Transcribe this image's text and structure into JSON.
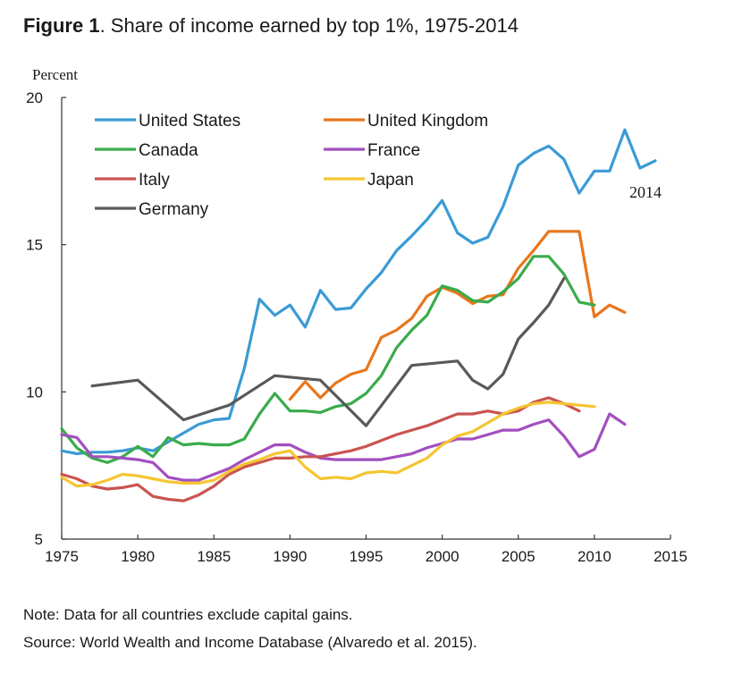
{
  "figure": {
    "label": "Figure 1",
    "title": ". Share of income earned by top 1%, 1975-2014",
    "note": "Note: Data for all countries exclude capital gains.",
    "source": "Source: World Wealth and Income Database (Alvaredo et al. 2015)."
  },
  "chart_data": {
    "type": "line",
    "title": "Share of income earned by top 1%, 1975-2014",
    "xlabel": "",
    "ylabel": "Percent",
    "xlim": [
      1975,
      2015
    ],
    "ylim": [
      5,
      20
    ],
    "xticks": [
      1975,
      1980,
      1985,
      1990,
      1995,
      2000,
      2005,
      2010,
      2015
    ],
    "yticks": [
      5,
      10,
      15,
      20
    ],
    "grid": false,
    "legend_position": "top-left",
    "annotations": [
      {
        "text": "2014",
        "x": 2014,
        "y": 17.3
      }
    ],
    "series": [
      {
        "name": "United States",
        "color": "#3a9bd5",
        "x": [
          1975,
          1976,
          1977,
          1978,
          1979,
          1980,
          1981,
          1982,
          1983,
          1984,
          1985,
          1986,
          1987,
          1988,
          1989,
          1990,
          1991,
          1992,
          1993,
          1994,
          1995,
          1996,
          1997,
          1998,
          1999,
          2000,
          2001,
          2002,
          2003,
          2004,
          2005,
          2006,
          2007,
          2008,
          2009,
          2010,
          2011,
          2012,
          2013,
          2014
        ],
        "y": [
          8.0,
          7.9,
          7.95,
          7.95,
          8.0,
          8.1,
          8.0,
          8.3,
          8.6,
          8.9,
          9.05,
          9.1,
          10.8,
          13.15,
          12.6,
          12.95,
          12.2,
          13.45,
          12.8,
          12.85,
          13.5,
          14.05,
          14.8,
          15.3,
          15.85,
          16.5,
          15.4,
          15.05,
          15.25,
          16.3,
          17.7,
          18.1,
          18.35,
          17.9,
          16.75,
          17.5,
          17.5,
          18.9,
          17.6,
          17.85
        ]
      },
      {
        "name": "United Kingdom",
        "color": "#e8761c",
        "x": [
          1990,
          1991,
          1992,
          1993,
          1994,
          1995,
          1996,
          1997,
          1998,
          1999,
          2000,
          2001,
          2002,
          2003,
          2004,
          2005,
          2006,
          2007,
          2008,
          2009,
          2010,
          2011,
          2012
        ],
        "y": [
          9.75,
          10.35,
          9.8,
          10.3,
          10.6,
          10.75,
          11.85,
          12.1,
          12.5,
          13.25,
          13.55,
          13.35,
          13.0,
          13.25,
          13.3,
          14.2,
          14.8,
          15.45,
          15.45,
          15.45,
          12.55,
          12.95,
          12.7
        ]
      },
      {
        "name": "Canada",
        "color": "#3aab4c",
        "x": [
          1975,
          1976,
          1977,
          1978,
          1979,
          1980,
          1981,
          1982,
          1983,
          1984,
          1985,
          1986,
          1987,
          1988,
          1989,
          1990,
          1991,
          1992,
          1993,
          1994,
          1995,
          1996,
          1997,
          1998,
          1999,
          2000,
          2001,
          2002,
          2003,
          2004,
          2005,
          2006,
          2007,
          2008,
          2009,
          2010
        ],
        "y": [
          8.75,
          8.1,
          7.75,
          7.6,
          7.8,
          8.15,
          7.8,
          8.45,
          8.2,
          8.25,
          8.2,
          8.2,
          8.4,
          9.25,
          9.95,
          9.35,
          9.35,
          9.3,
          9.5,
          9.6,
          9.95,
          10.55,
          11.5,
          12.1,
          12.6,
          13.6,
          13.45,
          13.1,
          13.05,
          13.4,
          13.85,
          14.6,
          14.6,
          14.0,
          13.05,
          12.95
        ]
      },
      {
        "name": "France",
        "color": "#a24fbf",
        "x": [
          1975,
          1976,
          1977,
          1978,
          1979,
          1980,
          1981,
          1982,
          1983,
          1984,
          1985,
          1986,
          1987,
          1988,
          1989,
          1990,
          1991,
          1992,
          1993,
          1994,
          1995,
          1996,
          1997,
          1998,
          1999,
          2000,
          2001,
          2002,
          2003,
          2004,
          2005,
          2006,
          2007,
          2008,
          2009,
          2010,
          2011,
          2012
        ],
        "y": [
          8.55,
          8.45,
          7.8,
          7.8,
          7.75,
          7.7,
          7.6,
          7.1,
          7.0,
          7.0,
          7.2,
          7.4,
          7.7,
          7.95,
          8.2,
          8.2,
          7.95,
          7.75,
          7.7,
          7.7,
          7.7,
          7.7,
          7.8,
          7.9,
          8.1,
          8.25,
          8.4,
          8.4,
          8.55,
          8.7,
          8.7,
          8.9,
          9.05,
          8.5,
          7.8,
          8.05,
          9.25,
          8.9
        ]
      },
      {
        "name": "Italy",
        "color": "#c9544f",
        "x": [
          1975,
          1976,
          1977,
          1978,
          1979,
          1980,
          1981,
          1982,
          1983,
          1984,
          1985,
          1986,
          1987,
          1988,
          1989,
          1990,
          1991,
          1992,
          1993,
          1994,
          1995,
          1996,
          1997,
          1998,
          1999,
          2000,
          2001,
          2002,
          2003,
          2004,
          2005,
          2006,
          2007,
          2008,
          2009
        ],
        "y": [
          7.2,
          7.05,
          6.8,
          6.7,
          6.75,
          6.85,
          6.45,
          6.35,
          6.3,
          6.5,
          6.8,
          7.2,
          7.45,
          7.6,
          7.75,
          7.75,
          7.8,
          7.8,
          7.9,
          8.0,
          8.15,
          8.35,
          8.55,
          8.7,
          8.85,
          9.05,
          9.25,
          9.25,
          9.35,
          9.25,
          9.35,
          9.65,
          9.8,
          9.6,
          9.35
        ]
      },
      {
        "name": "Japan",
        "color": "#f5c531",
        "x": [
          1975,
          1976,
          1977,
          1978,
          1979,
          1980,
          1981,
          1982,
          1983,
          1984,
          1985,
          1986,
          1987,
          1988,
          1989,
          1990,
          1991,
          1992,
          1993,
          1994,
          1995,
          1996,
          1997,
          1998,
          1999,
          2000,
          2001,
          2002,
          2003,
          2004,
          2005,
          2006,
          2007,
          2008,
          2009,
          2010
        ],
        "y": [
          7.1,
          6.8,
          6.85,
          7.0,
          7.2,
          7.15,
          7.05,
          6.95,
          6.9,
          6.9,
          7.0,
          7.3,
          7.55,
          7.7,
          7.9,
          8.0,
          7.45,
          7.05,
          7.1,
          7.05,
          7.25,
          7.3,
          7.25,
          7.5,
          7.75,
          8.2,
          8.5,
          8.65,
          8.95,
          9.25,
          9.45,
          9.6,
          9.65,
          9.6,
          9.55,
          9.5
        ]
      },
      {
        "name": "Germany",
        "color": "#595959",
        "x": [
          1977,
          1980,
          1983,
          1986,
          1989,
          1992,
          1995,
          1998,
          2001,
          2002,
          2003,
          2004,
          2005,
          2006,
          2007,
          2008
        ],
        "y": [
          10.2,
          10.4,
          9.05,
          9.55,
          10.55,
          10.4,
          8.85,
          10.9,
          11.05,
          10.4,
          10.1,
          10.6,
          11.8,
          12.35,
          12.95,
          13.85
        ]
      }
    ]
  }
}
